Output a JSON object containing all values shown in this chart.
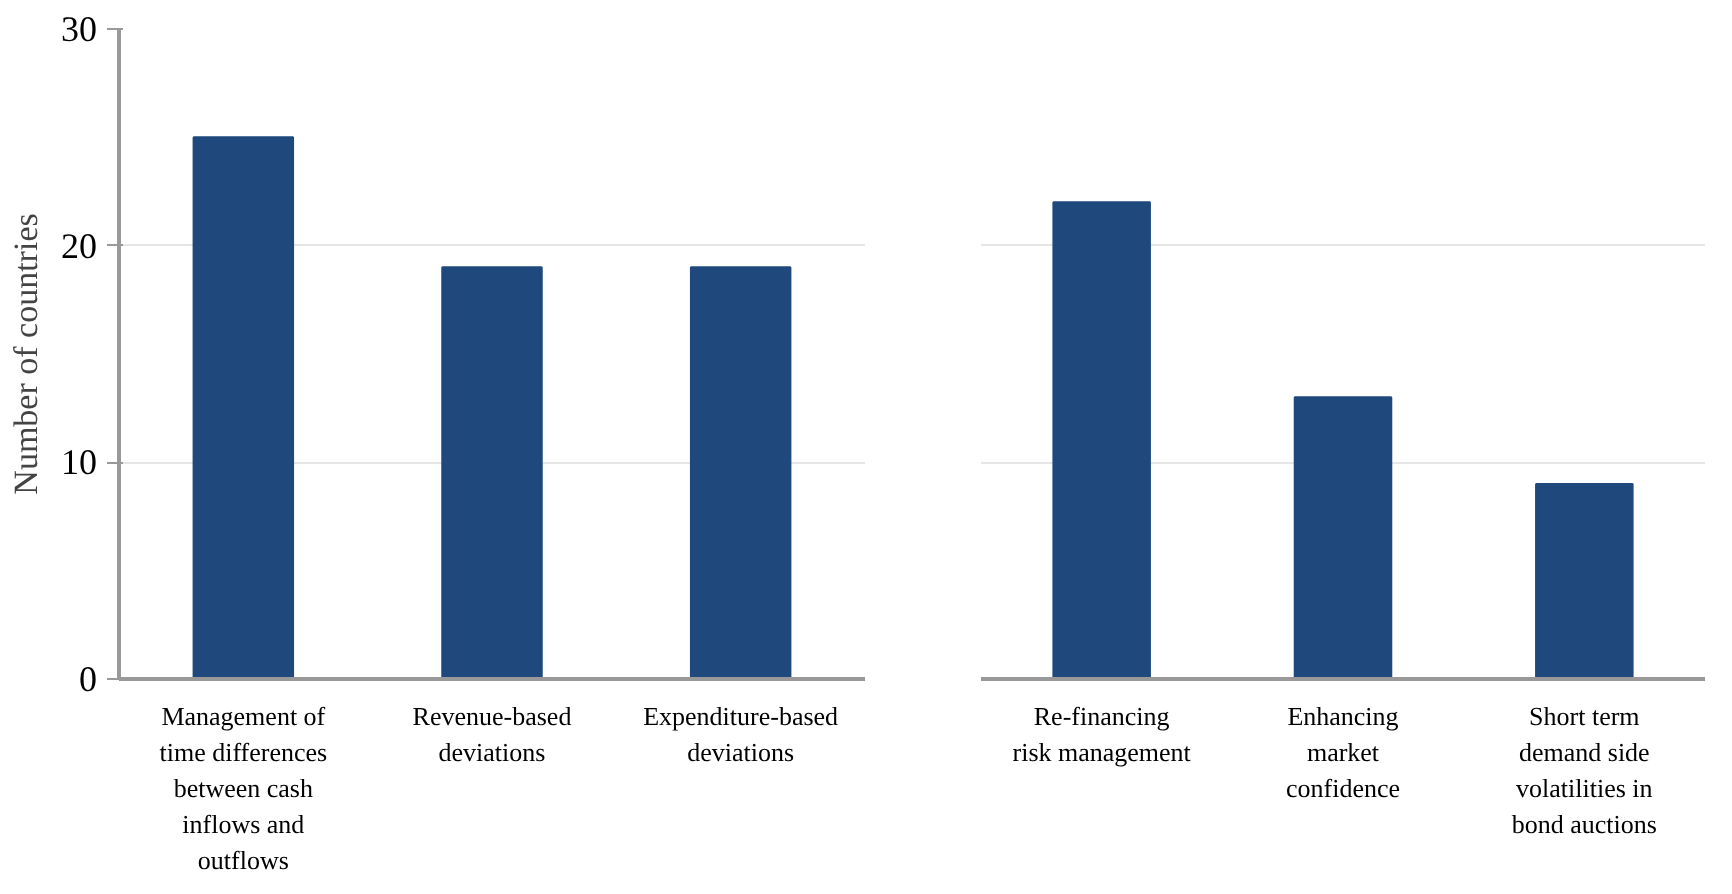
{
  "chart_data": [
    {
      "type": "bar",
      "ylabel": "Number of countries",
      "categories": [
        "Management of time differences between cash inflows and outflows",
        "Revenue-based deviations",
        "Expenditure-based deviations"
      ],
      "values": [
        25,
        19,
        19
      ],
      "color": "#1f497d",
      "ylim": [
        0,
        30
      ],
      "yticks": [
        0,
        10,
        20,
        30
      ],
      "grid": "y"
    },
    {
      "type": "bar",
      "categories": [
        "Re-financing risk management",
        "Enhancing market confidence",
        "Short term demand side volatilities in bond auctions"
      ],
      "values": [
        22,
        13,
        9
      ],
      "color": "#1f497d",
      "ylim": [
        0,
        30
      ],
      "yticks": [
        0,
        10,
        20,
        30
      ],
      "grid": "y",
      "tick_labels": "x"
    }
  ]
}
